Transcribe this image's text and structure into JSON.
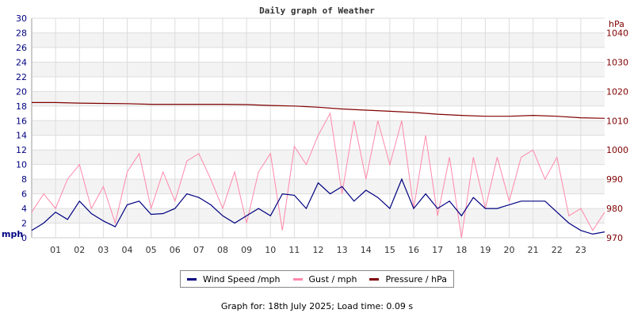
{
  "chart_data": {
    "type": "line",
    "title": "Daily graph of Weather",
    "ylabel_left": "mph",
    "ylabel_right": "hPa",
    "ylim_left": [
      0,
      30
    ],
    "ylim_right": [
      970,
      1045
    ],
    "yticks_left": [
      "0",
      "2",
      "4",
      "6",
      "8",
      "10",
      "12",
      "14",
      "16",
      "18",
      "20",
      "22",
      "24",
      "26",
      "28",
      "30"
    ],
    "yticks_right": [
      "970",
      "980",
      "990",
      "1000",
      "1010",
      "1020",
      "1030",
      "1040"
    ],
    "xlim": [
      0,
      24
    ],
    "xticks": [
      "01",
      "02",
      "03",
      "04",
      "05",
      "06",
      "07",
      "08",
      "09",
      "10",
      "11",
      "12",
      "13",
      "14",
      "15",
      "16",
      "17",
      "18",
      "19",
      "20",
      "21",
      "22",
      "23"
    ],
    "grid": true,
    "legend_position": "bottom",
    "series": [
      {
        "name": "Wind Speed /mph",
        "color": "#000080",
        "axis": "left",
        "x": [
          0,
          0.5,
          1,
          1.5,
          2,
          2.5,
          3,
          3.5,
          4,
          4.5,
          5,
          5.5,
          6,
          6.5,
          7,
          7.5,
          8,
          8.5,
          9,
          9.5,
          10,
          10.5,
          11,
          11.5,
          12,
          12.5,
          13,
          13.5,
          14,
          14.5,
          15,
          15.5,
          16,
          16.5,
          17,
          17.5,
          18,
          18.5,
          19,
          19.5,
          20,
          20.5,
          21,
          21.5,
          22,
          22.5,
          23,
          23.5,
          24
        ],
        "values": [
          1,
          2,
          3.5,
          2.5,
          5,
          3.3,
          2.3,
          1.5,
          4.5,
          5,
          3.2,
          3.3,
          4,
          6,
          5.5,
          4.5,
          3,
          2,
          3,
          4,
          3,
          6,
          5.8,
          4,
          7.5,
          6,
          7,
          5,
          6.5,
          5.5,
          4,
          8,
          4,
          6,
          4,
          5,
          3,
          5.5,
          4,
          4,
          4.5,
          5,
          5,
          5,
          3.5,
          2,
          1,
          0.5,
          0.8
        ]
      },
      {
        "name": "Gust / mph",
        "color": "#ff88aa",
        "axis": "left",
        "x": [
          0,
          0.5,
          1,
          1.5,
          2,
          2.5,
          3,
          3.5,
          4,
          4.5,
          5,
          5.5,
          6,
          6.5,
          7,
          7.5,
          8,
          8.5,
          9,
          9.5,
          10,
          10.5,
          11,
          11.5,
          12,
          12.5,
          13,
          13.5,
          14,
          14.5,
          15,
          15.5,
          16,
          16.5,
          17,
          17.5,
          18,
          18.5,
          19,
          19.5,
          20,
          20.5,
          21,
          21.5,
          22,
          22.5,
          23,
          23.5,
          24
        ],
        "values": [
          3.5,
          6,
          4,
          8,
          10,
          4,
          7,
          2,
          9,
          11.5,
          4,
          9,
          5,
          10.5,
          11.5,
          8,
          4,
          9,
          2,
          9,
          11.5,
          1,
          12.5,
          10,
          14,
          17,
          6,
          16,
          8,
          16,
          10,
          16,
          4,
          14,
          3,
          11,
          0,
          11,
          4,
          11,
          5,
          11,
          12,
          8,
          11,
          3,
          4,
          1,
          3.5
        ]
      },
      {
        "name": "Pressure / hPa",
        "color": "#800000",
        "axis": "right",
        "x": [
          0,
          1,
          2,
          3,
          4,
          5,
          6,
          7,
          8,
          9,
          10,
          11,
          12,
          13,
          14,
          15,
          16,
          17,
          18,
          19,
          20,
          21,
          22,
          23,
          24
        ],
        "values": [
          1016.2,
          1016.2,
          1016,
          1015.9,
          1015.8,
          1015.6,
          1015.6,
          1015.6,
          1015.6,
          1015.5,
          1015.2,
          1015,
          1014.6,
          1014,
          1013.6,
          1013.2,
          1012.8,
          1012.2,
          1011.8,
          1011.5,
          1011.5,
          1011.8,
          1011.5,
          1011,
          1010.8
        ]
      }
    ]
  },
  "footer": "Graph for: 18th July 2025; Load time: 0.09 s"
}
